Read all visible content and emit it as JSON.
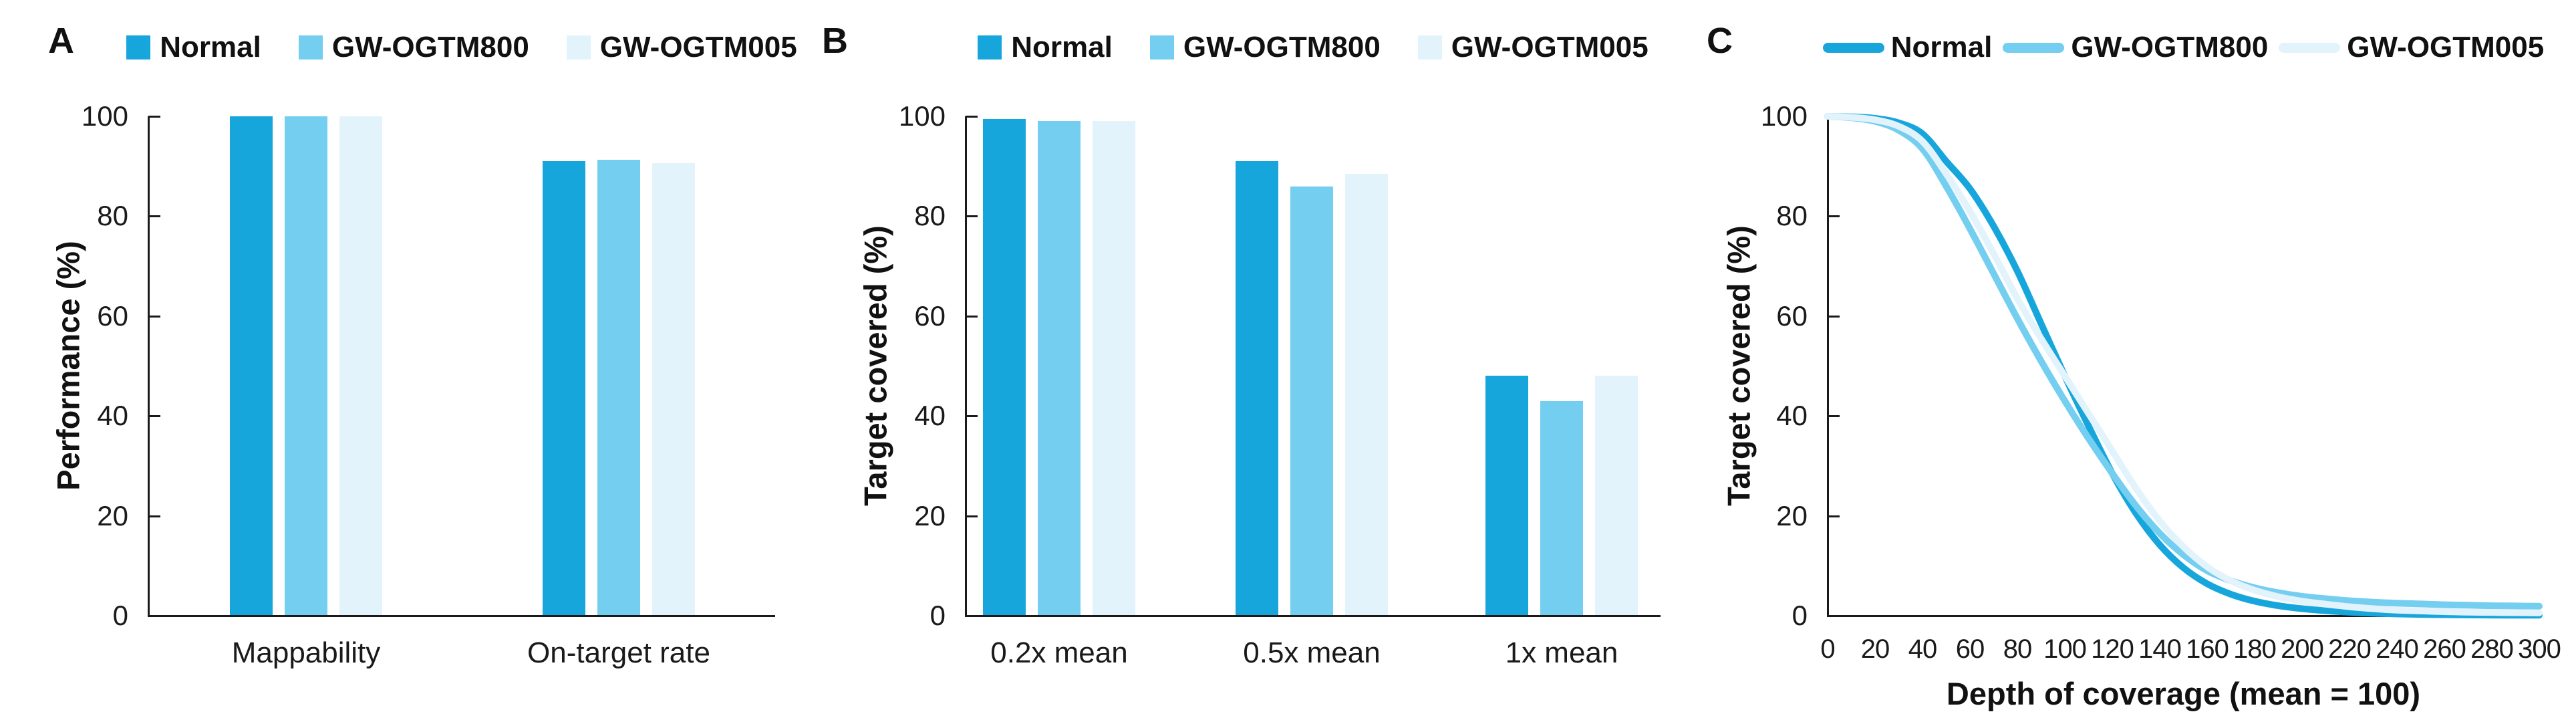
{
  "figure": {
    "background": "#ffffff",
    "text_color": "#111111",
    "axis_color": "#1a1a1a",
    "series_colors": {
      "normal": "#17A6DC",
      "gw_ogtm800": "#73CEF0",
      "gw_ogtm005": "#E3F3FB"
    },
    "legend_labels": [
      "Normal",
      "GW-OGTM800",
      "GW-OGTM005"
    ]
  },
  "chart_data": [
    {
      "panel_label": "A",
      "type": "bar",
      "categories": [
        "Mappability",
        "On-target rate"
      ],
      "series": [
        {
          "name": "Normal",
          "color": "#17A6DC",
          "values": [
            100,
            91
          ]
        },
        {
          "name": "GW-OGTM800",
          "color": "#73CEF0",
          "values": [
            100,
            91.3
          ]
        },
        {
          "name": "GW-OGTM005",
          "color": "#E3F3FB",
          "values": [
            100,
            90.6
          ]
        }
      ],
      "xlabel": "",
      "ylabel": "Performance (%)",
      "ylim": [
        0,
        100
      ],
      "yticks": [
        0,
        20,
        40,
        60,
        80,
        100
      ],
      "legend_position": "top",
      "grid": false
    },
    {
      "panel_label": "B",
      "type": "bar",
      "categories": [
        "0.2x mean",
        "0.5x mean",
        "1x mean"
      ],
      "series": [
        {
          "name": "Normal",
          "color": "#17A6DC",
          "values": [
            99.4,
            91,
            48
          ]
        },
        {
          "name": "GW-OGTM800",
          "color": "#73CEF0",
          "values": [
            99.1,
            86,
            43
          ]
        },
        {
          "name": "GW-OGTM005",
          "color": "#E3F3FB",
          "values": [
            99.1,
            88.5,
            48
          ]
        }
      ],
      "xlabel": "",
      "ylabel": "Target covered (%)",
      "ylim": [
        0,
        100
      ],
      "yticks": [
        0,
        20,
        40,
        60,
        80,
        100
      ],
      "legend_position": "top",
      "grid": false
    },
    {
      "panel_label": "C",
      "type": "line",
      "x": [
        0,
        10,
        20,
        30,
        40,
        50,
        60,
        70,
        80,
        90,
        100,
        110,
        120,
        130,
        140,
        150,
        160,
        170,
        180,
        190,
        200,
        210,
        220,
        230,
        240,
        250,
        260,
        270,
        280,
        290,
        300
      ],
      "series": [
        {
          "name": "Normal",
          "color": "#17A6DC",
          "values": [
            100,
            99.9,
            99.6,
            98.7,
            96.5,
            91,
            85.5,
            78,
            69,
            58.5,
            48,
            38,
            28.5,
            20.5,
            14.2,
            9.6,
            6.4,
            4.3,
            2.9,
            2,
            1.4,
            1,
            0.7,
            0.5,
            0.35,
            0.25,
            0.2,
            0.15,
            0.12,
            0.1,
            0.1
          ]
        },
        {
          "name": "GW-OGTM800",
          "color": "#73CEF0",
          "values": [
            100,
            99.7,
            99,
            97.2,
            93.5,
            86,
            77.5,
            68.5,
            59.5,
            51,
            43,
            35.5,
            28.5,
            22,
            16.5,
            12.2,
            9,
            7,
            5.6,
            4.6,
            3.9,
            3.4,
            3,
            2.7,
            2.5,
            2.35,
            2.2,
            2.1,
            2,
            1.95,
            1.9
          ]
        },
        {
          "name": "GW-OGTM005",
          "color": "#E3F3FB",
          "values": [
            100,
            99.8,
            99.3,
            98,
            95,
            88.5,
            81,
            72.5,
            63.5,
            55.5,
            48,
            40.5,
            33,
            25.5,
            19,
            13.8,
            9.8,
            7,
            5.1,
            3.8,
            2.9,
            2.3,
            1.8,
            1.4,
            1.1,
            0.95,
            0.8,
            0.7,
            0.65,
            0.6,
            0.55
          ]
        }
      ],
      "xlabel": "Depth of coverage (mean = 100)",
      "ylabel": "Target covered (%)",
      "xlim": [
        0,
        300
      ],
      "xticks": [
        0,
        20,
        40,
        60,
        80,
        100,
        120,
        140,
        160,
        180,
        200,
        220,
        240,
        260,
        280,
        300
      ],
      "ylim": [
        0,
        100
      ],
      "yticks": [
        0,
        20,
        40,
        60,
        80,
        100
      ],
      "legend_position": "top",
      "grid": false
    }
  ]
}
